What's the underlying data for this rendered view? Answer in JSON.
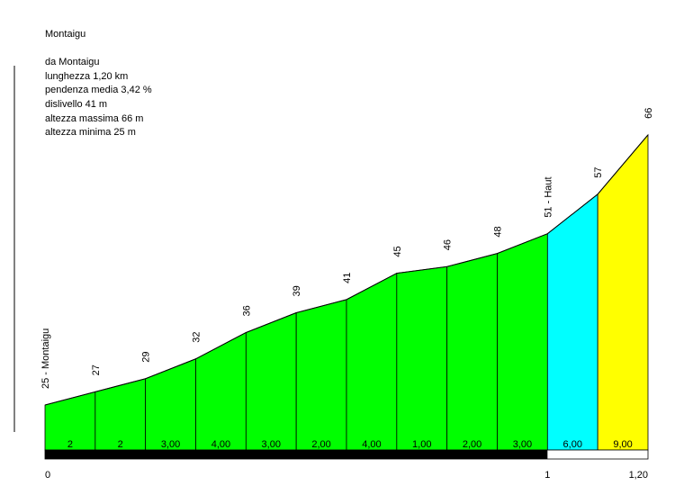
{
  "info": {
    "title": "Montaigu",
    "from": "da Montaigu",
    "length": "lunghezza 1,20 km",
    "avg_gradient": "pendenza media 3,42 %",
    "elevation_gain": "dislivello 41 m",
    "max_altitude": "altezza massima 66 m",
    "min_altitude": "altezza minima 25 m"
  },
  "chart_data": {
    "type": "area",
    "title": "Montaigu",
    "x_unit": "km",
    "xlim": [
      0,
      1.2
    ],
    "ylim": [
      0,
      66
    ],
    "x_tick_labels": [
      "0",
      "1",
      "1,20"
    ],
    "x_tick_values": [
      0,
      1,
      1.2
    ],
    "points": [
      {
        "x": 0.0,
        "y": 25,
        "label": "25 - Montaigu"
      },
      {
        "x": 0.1,
        "y": 27,
        "label": "27"
      },
      {
        "x": 0.2,
        "y": 29,
        "label": "29"
      },
      {
        "x": 0.3,
        "y": 32,
        "label": "32"
      },
      {
        "x": 0.4,
        "y": 36,
        "label": "36"
      },
      {
        "x": 0.5,
        "y": 39,
        "label": "39"
      },
      {
        "x": 0.6,
        "y": 41,
        "label": "41"
      },
      {
        "x": 0.7,
        "y": 45,
        "label": "45"
      },
      {
        "x": 0.8,
        "y": 46,
        "label": "46"
      },
      {
        "x": 0.9,
        "y": 48,
        "label": "48"
      },
      {
        "x": 1.0,
        "y": 51,
        "label": "51 - Haut"
      },
      {
        "x": 1.1,
        "y": 57,
        "label": "57"
      },
      {
        "x": 1.2,
        "y": 66,
        "label": "66"
      }
    ],
    "segments": [
      {
        "from": 0.0,
        "to": 0.1,
        "gradient": 2,
        "label": "2",
        "color": "#00ff00"
      },
      {
        "from": 0.1,
        "to": 0.2,
        "gradient": 2,
        "label": "2",
        "color": "#00ff00"
      },
      {
        "from": 0.2,
        "to": 0.3,
        "gradient": 3,
        "label": "3,00",
        "color": "#00ff00"
      },
      {
        "from": 0.3,
        "to": 0.4,
        "gradient": 4,
        "label": "4,00",
        "color": "#00ff00"
      },
      {
        "from": 0.4,
        "to": 0.5,
        "gradient": 3,
        "label": "3,00",
        "color": "#00ff00"
      },
      {
        "from": 0.5,
        "to": 0.6,
        "gradient": 2,
        "label": "2,00",
        "color": "#00ff00"
      },
      {
        "from": 0.6,
        "to": 0.7,
        "gradient": 4,
        "label": "4,00",
        "color": "#00ff00"
      },
      {
        "from": 0.7,
        "to": 0.8,
        "gradient": 1,
        "label": "1,00",
        "color": "#00ff00"
      },
      {
        "from": 0.8,
        "to": 0.9,
        "gradient": 2,
        "label": "2,00",
        "color": "#00ff00"
      },
      {
        "from": 0.9,
        "to": 1.0,
        "gradient": 3,
        "label": "3,00",
        "color": "#00ff00"
      },
      {
        "from": 1.0,
        "to": 1.1,
        "gradient": 6,
        "label": "6,00",
        "color": "#00ffff"
      },
      {
        "from": 1.1,
        "to": 1.2,
        "gradient": 9,
        "label": "9,00",
        "color": "#ffff00"
      }
    ]
  }
}
